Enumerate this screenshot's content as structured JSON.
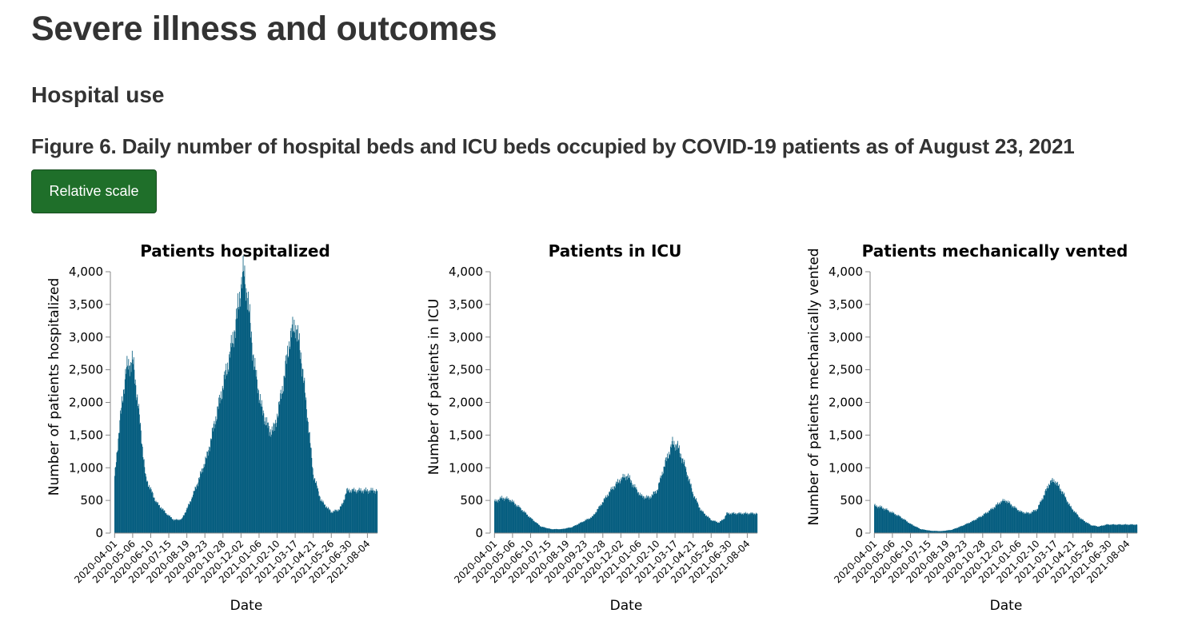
{
  "page": {
    "heading": "Severe illness and outcomes",
    "subheading": "Hospital use",
    "figure_title": "Figure 6. Daily number of hospital beds and ICU beds occupied by COVID-19 patients as of August 23, 2021",
    "scale_button": "Relative scale"
  },
  "colors": {
    "bar": "#005a7d",
    "button": "#1f6f2a",
    "axis": "#888888"
  },
  "chart_data": [
    {
      "type": "bar",
      "title": "Patients hospitalized",
      "xlabel": "Date",
      "ylabel": "Number of patients hospitalized",
      "ylim": [
        0,
        4000
      ],
      "yticks": [
        "0",
        "500",
        "1,000",
        "1,500",
        "2,000",
        "2,500",
        "3,000",
        "3,500",
        "4,000"
      ],
      "xticks": [
        "2020-04-01",
        "2020-05-06",
        "2020-06-10",
        "2020-07-15",
        "2020-08-19",
        "2020-09-23",
        "2020-10-28",
        "2020-12-02",
        "2021-01-06",
        "2021-02-10",
        "2021-03-17",
        "2021-04-21",
        "2021-05-26",
        "2021-06-30",
        "2021-08-04"
      ],
      "series_start": "2020-04-01",
      "series_end": "2021-08-23",
      "keypoints": [
        [
          0,
          850
        ],
        [
          10,
          1700
        ],
        [
          22,
          2500
        ],
        [
          35,
          2650
        ],
        [
          45,
          2000
        ],
        [
          60,
          850
        ],
        [
          80,
          480
        ],
        [
          100,
          300
        ],
        [
          115,
          200
        ],
        [
          130,
          210
        ],
        [
          145,
          450
        ],
        [
          160,
          750
        ],
        [
          180,
          1200
        ],
        [
          200,
          1900
        ],
        [
          220,
          2600
        ],
        [
          235,
          3200
        ],
        [
          245,
          3800
        ],
        [
          250,
          4000
        ],
        [
          258,
          3600
        ],
        [
          270,
          2600
        ],
        [
          285,
          1900
        ],
        [
          300,
          1560
        ],
        [
          310,
          1600
        ],
        [
          325,
          2200
        ],
        [
          340,
          3000
        ],
        [
          350,
          3200
        ],
        [
          360,
          2800
        ],
        [
          375,
          1700
        ],
        [
          385,
          900
        ],
        [
          400,
          500
        ],
        [
          420,
          320
        ],
        [
          435,
          360
        ],
        [
          442,
          450
        ],
        [
          450,
          650
        ]
      ]
    },
    {
      "type": "bar",
      "title": "Patients in ICU",
      "xlabel": "Date",
      "ylabel": "Number of patients in ICU",
      "ylim": [
        0,
        4000
      ],
      "yticks": [
        "0",
        "500",
        "1,000",
        "1,500",
        "2,000",
        "2,500",
        "3,000",
        "3,500",
        "4,000"
      ],
      "xticks": [
        "2020-04-01",
        "2020-05-06",
        "2020-06-10",
        "2020-07-15",
        "2020-08-19",
        "2020-09-23",
        "2020-10-28",
        "2020-12-02",
        "2021-01-06",
        "2021-02-10",
        "2021-03-17",
        "2021-04-21",
        "2021-05-26",
        "2021-06-30",
        "2021-08-04"
      ],
      "series_start": "2020-04-01",
      "series_end": "2021-08-23",
      "keypoints": [
        [
          0,
          480
        ],
        [
          15,
          540
        ],
        [
          30,
          510
        ],
        [
          50,
          380
        ],
        [
          70,
          230
        ],
        [
          90,
          100
        ],
        [
          110,
          60
        ],
        [
          130,
          60
        ],
        [
          150,
          90
        ],
        [
          170,
          170
        ],
        [
          190,
          250
        ],
        [
          205,
          420
        ],
        [
          225,
          650
        ],
        [
          245,
          830
        ],
        [
          258,
          880
        ],
        [
          270,
          720
        ],
        [
          285,
          560
        ],
        [
          300,
          540
        ],
        [
          315,
          650
        ],
        [
          330,
          1050
        ],
        [
          345,
          1380
        ],
        [
          355,
          1330
        ],
        [
          370,
          1000
        ],
        [
          385,
          600
        ],
        [
          400,
          350
        ],
        [
          420,
          200
        ],
        [
          435,
          160
        ],
        [
          445,
          220
        ],
        [
          450,
          300
        ]
      ]
    },
    {
      "type": "bar",
      "title": "Patients mechanically vented",
      "xlabel": "Date",
      "ylabel": "Number of patients mechanically vented",
      "ylim": [
        0,
        4000
      ],
      "yticks": [
        "0",
        "500",
        "1,000",
        "1,500",
        "2,000",
        "2,500",
        "3,000",
        "3,500",
        "4,000"
      ],
      "xticks": [
        "2020-04-01",
        "2020-05-06",
        "2020-06-10",
        "2020-07-15",
        "2020-08-19",
        "2020-09-23",
        "2020-10-28",
        "2020-12-02",
        "2021-01-06",
        "2021-02-10",
        "2021-03-17",
        "2021-04-21",
        "2021-05-26",
        "2021-06-30",
        "2021-08-04"
      ],
      "series_start": "2020-04-01",
      "series_end": "2021-08-23",
      "keypoints": [
        [
          0,
          420
        ],
        [
          15,
          390
        ],
        [
          30,
          330
        ],
        [
          50,
          250
        ],
        [
          70,
          140
        ],
        [
          90,
          60
        ],
        [
          110,
          35
        ],
        [
          130,
          30
        ],
        [
          150,
          50
        ],
        [
          170,
          110
        ],
        [
          190,
          180
        ],
        [
          210,
          270
        ],
        [
          230,
          380
        ],
        [
          245,
          480
        ],
        [
          255,
          500
        ],
        [
          270,
          400
        ],
        [
          285,
          320
        ],
        [
          300,
          300
        ],
        [
          315,
          360
        ],
        [
          330,
          600
        ],
        [
          340,
          780
        ],
        [
          350,
          800
        ],
        [
          365,
          620
        ],
        [
          380,
          400
        ],
        [
          400,
          220
        ],
        [
          420,
          120
        ],
        [
          435,
          100
        ],
        [
          445,
          120
        ],
        [
          450,
          130
        ]
      ]
    }
  ]
}
